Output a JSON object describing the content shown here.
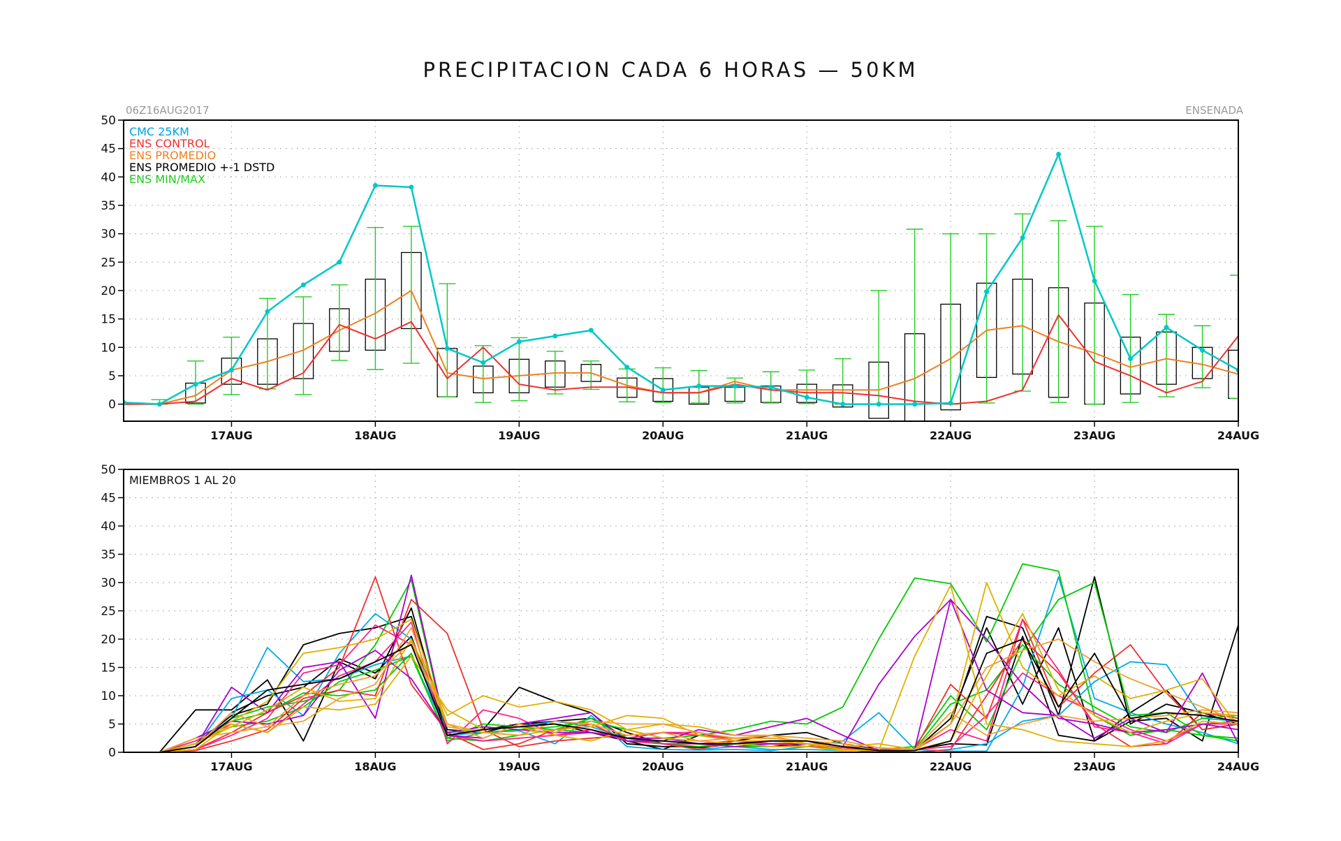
{
  "title": "PRECIPITACION CADA 6 HORAS — 50KM",
  "colors": {
    "cmc": "#00c8c8",
    "control": "#f03030",
    "promedio": "#f08020",
    "dstd": "#000000",
    "minmax": "#22cc22",
    "cmc_legend": "#00a0e0",
    "grid": "#bbbbbb"
  },
  "chart_data": [
    {
      "type": "box",
      "init_label": "06Z16AUG2017",
      "station": "ENSENADA",
      "ylim": [
        -3,
        50
      ],
      "yticks": [
        0,
        5,
        10,
        15,
        20,
        25,
        30,
        35,
        40,
        45,
        50
      ],
      "xlim_hours": [
        0,
        186
      ],
      "xticks": [
        {
          "t": 18,
          "label": "17AUG"
        },
        {
          "t": 42,
          "label": "18AUG"
        },
        {
          "t": 66,
          "label": "19AUG"
        },
        {
          "t": 90,
          "label": "20AUG"
        },
        {
          "t": 114,
          "label": "21AUG"
        },
        {
          "t": 138,
          "label": "22AUG"
        },
        {
          "t": 162,
          "label": "23AUG"
        },
        {
          "t": 186,
          "label": "24AUG"
        }
      ],
      "legend": [
        {
          "label": "CMC 25KM",
          "color": "#00a0e0"
        },
        {
          "label": "ENS CONTROL",
          "color": "#f03030"
        },
        {
          "label": "ENS PROMEDIO",
          "color": "#f08020"
        },
        {
          "label": "ENS PROMEDIO +-1 DSTD",
          "color": "#000000"
        },
        {
          "label": "ENS MIN/MAX",
          "color": "#22cc22"
        }
      ],
      "t": [
        0,
        6,
        12,
        18,
        24,
        30,
        36,
        42,
        48,
        54,
        60,
        66,
        72,
        78,
        84,
        90,
        96,
        102,
        108,
        114,
        120,
        126,
        132,
        138,
        144,
        150,
        156,
        162,
        168,
        174,
        180,
        186
      ],
      "cmc": [
        0.3,
        0,
        3.5,
        6,
        16.3,
        21,
        25,
        38.5,
        38.2,
        9.8,
        7.3,
        11,
        12,
        13,
        6.5,
        2.5,
        3.2,
        3.2,
        3,
        1.2,
        0,
        0,
        0,
        0.2,
        19.8,
        29.3,
        44,
        21.7,
        8,
        13.5,
        9.5,
        6
      ],
      "control": [
        0,
        0,
        0.5,
        4.5,
        2.5,
        5.5,
        14,
        11.5,
        14.5,
        4.5,
        10,
        3.5,
        2.5,
        3,
        3,
        2,
        2,
        3.5,
        2.5,
        2,
        2,
        1.5,
        0.5,
        0,
        0.5,
        2.5,
        15.7,
        7.5,
        5,
        2,
        4,
        12
      ],
      "mean": [
        0,
        0,
        1.5,
        6,
        7.5,
        9.5,
        13,
        16,
        20,
        5.5,
        4.5,
        5,
        5.5,
        5.5,
        3.3,
        2,
        2,
        4,
        2.5,
        2.5,
        2.5,
        2.5,
        4.5,
        8,
        13,
        13.8,
        11,
        9,
        6.5,
        8,
        7,
        5.3
      ],
      "dstd_lo": [
        0,
        0,
        0.2,
        3.5,
        3.5,
        4.5,
        9.3,
        9.5,
        13.3,
        1.3,
        2,
        2,
        3,
        4,
        1.2,
        0.5,
        0,
        0.5,
        0.3,
        0.3,
        -0.5,
        -2.5,
        -3,
        -1,
        4.7,
        5.3,
        1.2,
        0,
        1.8,
        3.5,
        4.5,
        1
      ],
      "dstd_hi": [
        0,
        0,
        3.7,
        8.1,
        11.5,
        14.2,
        16.8,
        22,
        26.7,
        9.8,
        6.7,
        7.9,
        7.6,
        7,
        4.6,
        4.5,
        3,
        3,
        3.2,
        3.5,
        3.4,
        7.4,
        12.4,
        17.6,
        21.3,
        22,
        20.5,
        17.8,
        11.8,
        12.7,
        10,
        9.5
      ],
      "ens_min": [
        0,
        0,
        0,
        1.7,
        2.7,
        1.7,
        7.7,
        6.1,
        7.2,
        1.3,
        0.3,
        0.6,
        1.8,
        2.6,
        0.4,
        0.3,
        0.2,
        0.2,
        0.2,
        0.1,
        0,
        0,
        0,
        0,
        0.2,
        2.3,
        0.3,
        0,
        0.3,
        1.3,
        2.9,
        1
      ],
      "ens_max": [
        0.3,
        0.8,
        7.6,
        11.8,
        18.6,
        18.9,
        21,
        31.1,
        31.3,
        21.2,
        10.3,
        11.7,
        9.3,
        7.6,
        6.2,
        6.4,
        5.9,
        4.6,
        5.7,
        6,
        8,
        20,
        30.8,
        30,
        30,
        33.5,
        32.3,
        31.3,
        19.3,
        15.8,
        13.8,
        22.7
      ]
    },
    {
      "type": "line",
      "label": "MIEMBROS 1 AL 20",
      "ylim": [
        0,
        50
      ],
      "yticks": [
        0,
        5,
        10,
        15,
        20,
        25,
        30,
        35,
        40,
        45,
        50
      ],
      "xlim_hours": [
        0,
        186
      ],
      "xticks": [
        {
          "t": 18,
          "label": "17AUG"
        },
        {
          "t": 42,
          "label": "18AUG"
        },
        {
          "t": 66,
          "label": "19AUG"
        },
        {
          "t": 90,
          "label": "20AUG"
        },
        {
          "t": 114,
          "label": "21AUG"
        },
        {
          "t": 138,
          "label": "22AUG"
        },
        {
          "t": 162,
          "label": "23AUG"
        },
        {
          "t": 186,
          "label": "24AUG"
        }
      ],
      "t": [
        0,
        6,
        12,
        18,
        24,
        30,
        36,
        42,
        48,
        54,
        60,
        66,
        72,
        78,
        84,
        90,
        96,
        102,
        108,
        114,
        120,
        126,
        132,
        138,
        144,
        150,
        156,
        162,
        168,
        174,
        180,
        186
      ],
      "series": [
        {
          "color": "#000000",
          "values": [
            0,
            0,
            7.5,
            7.5,
            12.8,
            2,
            16,
            13,
            25.5,
            3,
            4,
            11.5,
            9,
            7,
            1.5,
            1,
            1,
            1.5,
            1,
            1.5,
            0.5,
            0,
            0.5,
            1.5,
            1.3,
            20.5,
            3,
            2,
            5.5,
            6,
            2,
            22.5
          ]
        },
        {
          "color": "#000000",
          "values": [
            0,
            0,
            1.5,
            6.5,
            8.5,
            19,
            21,
            22,
            24,
            4,
            3.5,
            5,
            5,
            3.5,
            2,
            0.5,
            3,
            2,
            3,
            3.5,
            1.5,
            0.5,
            0.5,
            5,
            24,
            22,
            6.5,
            31,
            5,
            8.5,
            7,
            5
          ]
        },
        {
          "color": "#000000",
          "values": [
            0,
            0,
            1,
            7,
            10,
            11.5,
            16.5,
            14,
            20.5,
            3.5,
            4,
            5,
            5.5,
            6,
            3.5,
            1.5,
            0.8,
            1.5,
            2,
            2,
            1,
            0.5,
            0.3,
            6,
            22,
            8.5,
            22,
            2,
            7,
            11,
            4,
            5
          ]
        },
        {
          "color": "#00aaee",
          "values": [
            0,
            0,
            1,
            9.5,
            11,
            6.5,
            17.5,
            24.5,
            20,
            3,
            3.5,
            3.8,
            1.5,
            6.5,
            1,
            0.5,
            0.4,
            0.5,
            0.3,
            1,
            2,
            7,
            0.5,
            0.2,
            0.2,
            11.5,
            31,
            9.5,
            7,
            5,
            3.5,
            1.5
          ]
        },
        {
          "color": "#00aaee",
          "values": [
            0,
            0,
            1.5,
            6,
            18.5,
            12.5,
            13,
            15.5,
            17,
            3.5,
            4,
            4.5,
            5.5,
            4.5,
            2.5,
            1.5,
            0.5,
            1,
            0.5,
            0.5,
            0.3,
            0.3,
            0,
            0.5,
            1.5,
            5.5,
            6.5,
            12.5,
            16,
            15.5,
            6,
            5.5
          ]
        },
        {
          "color": "#00cc00",
          "values": [
            0,
            0,
            1.5,
            5.5,
            7,
            10.5,
            10,
            11,
            17.5,
            2,
            3.5,
            4,
            4.5,
            5.5,
            4,
            2.5,
            3,
            4,
            5.5,
            5,
            8,
            20,
            30.8,
            29.8,
            19.5,
            33.3,
            32,
            6.5,
            3,
            4,
            3,
            2
          ]
        },
        {
          "color": "#00cc00",
          "values": [
            0,
            0,
            1,
            6,
            8,
            9,
            11,
            19,
            30.5,
            2.5,
            2,
            3,
            4,
            6,
            2.5,
            1.5,
            1,
            1.5,
            1.5,
            1,
            0.5,
            0.5,
            1,
            10,
            4,
            18,
            27,
            30,
            6.5,
            7,
            3,
            2.5
          ]
        },
        {
          "color": "#00cc00",
          "values": [
            0,
            0,
            2,
            4.5,
            5.5,
            8,
            12.5,
            14.5,
            17,
            2.5,
            5,
            4.5,
            4,
            3.5,
            2.5,
            1.5,
            1.5,
            1,
            1,
            1,
            0.5,
            0.3,
            0.5,
            8.5,
            11,
            19,
            12,
            8,
            4.5,
            3.5,
            6,
            6.5
          ]
        },
        {
          "color": "#f03030",
          "values": [
            0,
            0,
            0.5,
            3.5,
            7,
            10,
            15,
            31,
            12,
            3.5,
            0.5,
            1.5,
            4,
            5,
            2,
            1.5,
            0.5,
            2,
            1.5,
            1,
            0.8,
            0.3,
            0.5,
            12,
            6,
            23.5,
            8,
            14,
            19,
            10.5,
            4,
            5
          ]
        },
        {
          "color": "#f03030",
          "values": [
            0,
            0,
            0.3,
            2,
            4,
            9.5,
            11,
            10,
            27,
            21,
            4,
            1,
            2,
            2.5,
            3,
            3.5,
            3,
            2.5,
            2.5,
            2,
            0.5,
            0.2,
            0,
            0.5,
            10,
            20,
            14,
            5,
            1,
            1.5,
            7,
            6
          ]
        },
        {
          "color": "#ff2288",
          "values": [
            0,
            0,
            2,
            5,
            3.5,
            8.5,
            13.5,
            16,
            23,
            1.5,
            7.5,
            6,
            3,
            3.5,
            2.5,
            3.5,
            3.5,
            2,
            2,
            1.5,
            1,
            0.2,
            0.5,
            4,
            2,
            23.5,
            14.5,
            4.5,
            3.5,
            1.5,
            5,
            5.5
          ]
        },
        {
          "color": "#ff2288",
          "values": [
            0,
            0,
            0.5,
            3,
            6,
            14,
            15.5,
            22.5,
            19,
            3,
            2,
            2.5,
            3,
            4,
            2,
            1.5,
            1.5,
            2,
            1.5,
            1.5,
            0.8,
            0.5,
            0.5,
            1,
            6.5,
            14,
            10,
            7,
            4,
            2,
            5,
            5
          ]
        },
        {
          "color": "#aa00cc",
          "values": [
            0,
            0,
            1,
            11.5,
            7,
            15,
            16,
            6,
            31.3,
            3,
            2.5,
            5,
            6,
            7,
            2,
            2,
            4,
            3,
            4.5,
            6,
            3,
            0.3,
            0.5,
            27,
            11,
            7,
            6.5,
            2.5,
            6,
            3.5,
            14,
            1.5
          ]
        },
        {
          "color": "#aa00cc",
          "values": [
            0,
            0,
            2.5,
            5.5,
            5,
            6.5,
            14.5,
            18,
            13,
            3.5,
            4.5,
            4,
            3.5,
            3.5,
            2.5,
            2.5,
            1.5,
            1,
            1.5,
            1.5,
            1,
            12,
            20.5,
            27,
            20,
            12,
            6,
            5,
            3.5,
            4,
            5,
            4
          ]
        },
        {
          "color": "#e0b000",
          "values": [
            0,
            0,
            1,
            5.5,
            9,
            17.5,
            18.5,
            20,
            23.5,
            5,
            3.5,
            3,
            4,
            4.5,
            6.5,
            6,
            3,
            2,
            2,
            1.5,
            1,
            1.5,
            0.5,
            5,
            30,
            15,
            10,
            13.5,
            9.5,
            11,
            13,
            4.5
          ]
        },
        {
          "color": "#e0b000",
          "values": [
            0,
            0,
            1.5,
            4.5,
            7.5,
            11.5,
            9,
            9.5,
            20,
            6.5,
            10,
            8,
            9,
            7.5,
            4,
            5,
            4.5,
            3,
            3,
            1.5,
            0.5,
            0.3,
            0.5,
            2,
            13.5,
            24.5,
            11,
            6.5,
            3.5,
            5.5,
            7,
            6.5
          ]
        },
        {
          "color": "#e0b000",
          "values": [
            0,
            0,
            0.5,
            5,
            3.5,
            8,
            7.5,
            8.5,
            17,
            7.5,
            4,
            4.5,
            3,
            2,
            4,
            2.5,
            2,
            1.5,
            1,
            1,
            0.3,
            0.3,
            17,
            29.5,
            5,
            4,
            2,
            1.5,
            1,
            2,
            5.5,
            5
          ]
        },
        {
          "color": "#f0a030",
          "values": [
            0,
            0,
            2.5,
            3.5,
            4.5,
            10,
            12,
            13.5,
            19.5,
            5,
            2.5,
            5,
            3.5,
            5.5,
            5,
            5,
            3.5,
            2.5,
            2.5,
            2,
            1.5,
            0.3,
            0.3,
            5,
            15,
            18,
            20,
            16,
            13,
            10.5,
            8,
            5.5
          ]
        },
        {
          "color": "#f0a030",
          "values": [
            0,
            0,
            1,
            7,
            4.5,
            5.5,
            9.5,
            12,
            22,
            4.5,
            3.5,
            3,
            5.5,
            5,
            3,
            3.5,
            2,
            2.5,
            3,
            2.5,
            2,
            0.8,
            0.5,
            7,
            3,
            5,
            6.5,
            5.5,
            6,
            6.5,
            7.5,
            7
          ]
        },
        {
          "color": "#000000",
          "values": [
            0,
            0,
            1,
            6,
            11,
            12,
            13,
            16,
            19,
            3,
            4,
            4.5,
            5,
            4,
            2.5,
            2,
            1.5,
            1.5,
            2,
            2,
            1,
            0.3,
            0.3,
            2,
            17.5,
            20,
            8,
            17.5,
            6,
            7,
            6.5,
            5.5
          ]
        }
      ]
    }
  ]
}
